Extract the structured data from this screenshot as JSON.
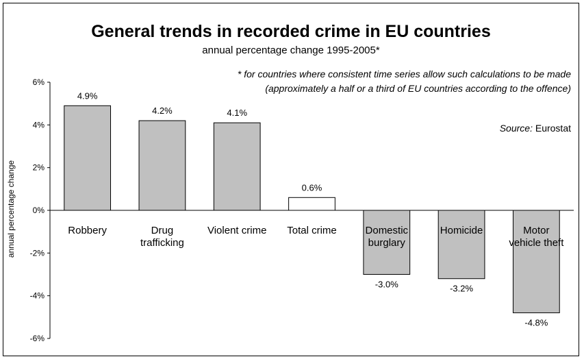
{
  "chart_data": {
    "type": "bar",
    "title": "General trends in recorded crime in EU countries",
    "subtitle": "annual percentage change 1995-2005*",
    "note_line1": "* for countries where consistent time series allow such calculations to be made",
    "note_line2": "(approximately a half or a third of EU countries according to the offence)",
    "source_label": "Source:",
    "source_value": " Eurostat",
    "ylabel": "annual percentage change",
    "ylim": [
      -6,
      6
    ],
    "yticks": [
      6,
      4,
      2,
      0,
      -2,
      -4,
      -6
    ],
    "ytick_labels": [
      "6%",
      "4%",
      "2%",
      "0%",
      "-2%",
      "-4%",
      "-6%"
    ],
    "categories": [
      [
        "Robbery"
      ],
      [
        "Drug",
        "trafficking"
      ],
      [
        "Violent crime"
      ],
      [
        "Total crime"
      ],
      [
        "Domestic",
        "burglary"
      ],
      [
        "Homicide"
      ],
      [
        "Motor",
        "vehicle theft"
      ]
    ],
    "values": [
      4.9,
      4.2,
      4.1,
      0.6,
      -3.0,
      -3.2,
      -4.8
    ],
    "value_labels": [
      "4.9%",
      "4.2%",
      "4.1%",
      "0.6%",
      "-3.0%",
      "-3.2%",
      "-4.8%"
    ],
    "bar_colors": [
      "#c0c0c0",
      "#c0c0c0",
      "#c0c0c0",
      "#ffffff",
      "#c0c0c0",
      "#c0c0c0",
      "#c0c0c0"
    ],
    "grid": false,
    "legend": "none"
  }
}
